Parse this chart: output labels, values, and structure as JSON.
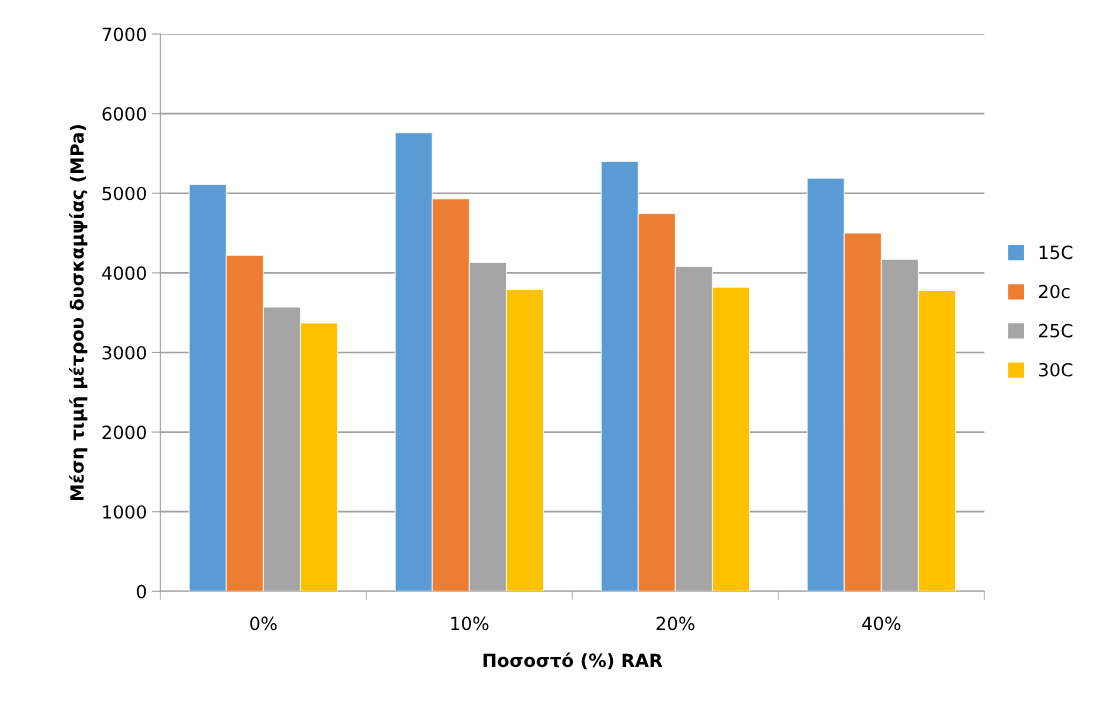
{
  "chart_data": {
    "type": "bar",
    "xlabel": "Ποσοστό (%) RAR",
    "ylabel": "Μέση τιμή μέτρου δυσκαμψίας (MPa)",
    "categories": [
      "0%",
      "10%",
      "20%",
      "40%"
    ],
    "series": [
      {
        "name": "15C",
        "color": "#5b9bd5",
        "values": [
          5110,
          5760,
          5400,
          5190
        ]
      },
      {
        "name": "20c",
        "color": "#ed7d31",
        "values": [
          4220,
          4930,
          4745,
          4500
        ]
      },
      {
        "name": "25C",
        "color": "#a5a5a5",
        "values": [
          3570,
          4130,
          4080,
          4170
        ]
      },
      {
        "name": "30C",
        "color": "#ffc000",
        "values": [
          3370,
          3790,
          3820,
          3780
        ]
      }
    ],
    "ylim": [
      0,
      7000
    ],
    "yticks": [
      0,
      1000,
      2000,
      3000,
      4000,
      5000,
      6000,
      7000
    ],
    "grid": "y",
    "legend": "right"
  }
}
